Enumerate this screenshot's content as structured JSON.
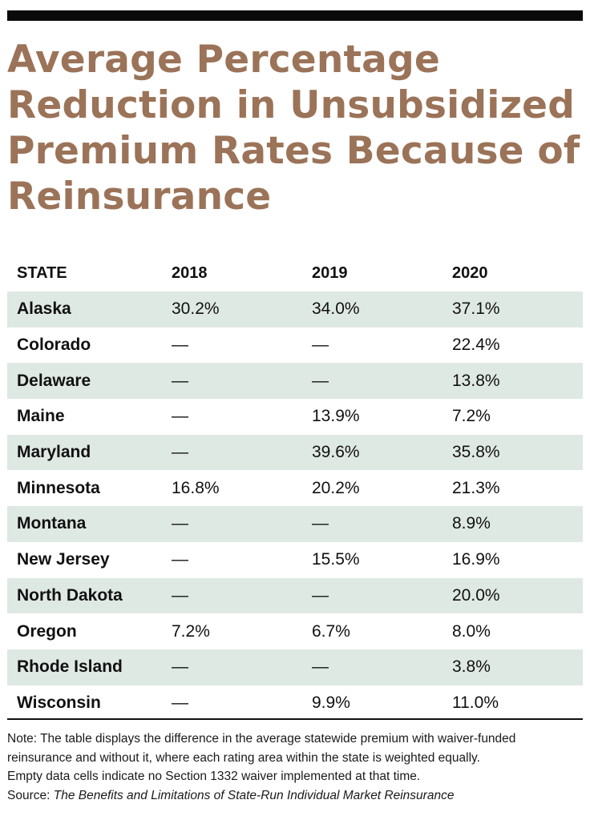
{
  "title": "Average Percentage Reduction in Unsubsidized Premium Rates Because of Reinsurance",
  "colors": {
    "title": "#9b7358",
    "shaded_row": "#dfe9e3",
    "rule": "#0a0a0a"
  },
  "chart_data": {
    "type": "table",
    "title": "Average Percentage Reduction in Unsubsidized Premium Rates Because of Reinsurance",
    "columns": [
      "STATE",
      "2018",
      "2019",
      "2020"
    ],
    "rows": [
      [
        "Alaska",
        "30.2%",
        "34.0%",
        "37.1%"
      ],
      [
        "Colorado",
        "—",
        "—",
        "22.4%"
      ],
      [
        "Delaware",
        "—",
        "—",
        "13.8%"
      ],
      [
        "Maine",
        "—",
        "13.9%",
        "7.2%"
      ],
      [
        "Maryland",
        "—",
        "39.6%",
        "35.8%"
      ],
      [
        "Minnesota",
        "16.8%",
        "20.2%",
        "21.3%"
      ],
      [
        "Montana",
        "—",
        "—",
        "8.9%"
      ],
      [
        "New Jersey",
        "—",
        "15.5%",
        "16.9%"
      ],
      [
        "North Dakota",
        "—",
        "—",
        "20.0%"
      ],
      [
        "Oregon",
        "7.2%",
        "6.7%",
        "8.0%"
      ],
      [
        "Rhode Island",
        "—",
        "—",
        "3.8%"
      ],
      [
        "Wisconsin",
        "—",
        "9.9%",
        "11.0%"
      ]
    ]
  },
  "note": {
    "line1": "Note: The table displays the difference in the average statewide premium with waiver-funded",
    "line2": "reinsurance and without it, where each rating area within the state is weighted equally.",
    "line3": "Empty data cells indicate no Section 1332 waiver implemented at that time.",
    "source_label": "Source: ",
    "source_title": "The Benefits and Limitations of State-Run Individual Market Reinsurance"
  }
}
